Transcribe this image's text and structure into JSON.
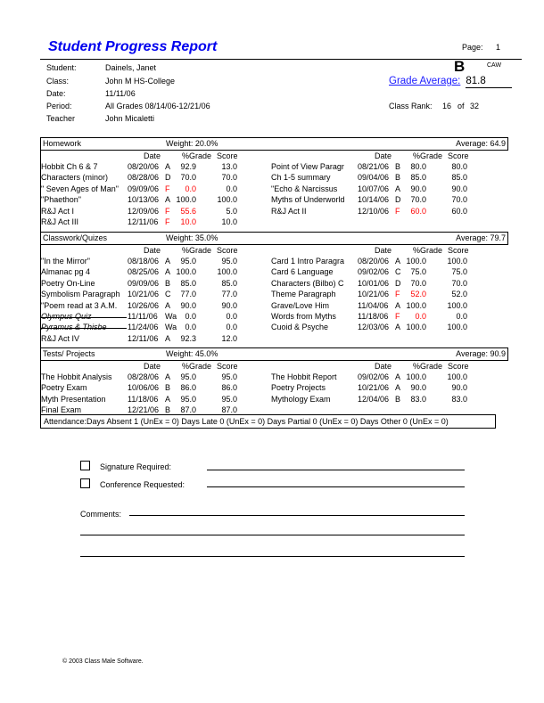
{
  "header": {
    "title": "Student Progress Report",
    "page_label": "Page:",
    "page_number": "1",
    "fields": [
      {
        "label": "Student:",
        "value": "Dainels, Janet"
      },
      {
        "label": "Class:",
        "value": "John M HS-College"
      },
      {
        "label": "Date:",
        "value": "11/11/06"
      },
      {
        "label": "Period:",
        "value": "All Grades 08/14/06-12/21/06"
      },
      {
        "label": "Teacher",
        "value": "John Micaletti"
      }
    ],
    "letter_grade": "B",
    "caw": "CAW",
    "grade_average_label": "Grade Average:",
    "grade_average": "81.8",
    "class_rank_label": "Class Rank:",
    "class_rank": "16",
    "of_label": "of",
    "class_size": "32"
  },
  "columns": {
    "date": "Date",
    "pct": "%Grade",
    "score": "Score"
  },
  "colors": {
    "title": "#0000ee",
    "fail": "#ff0000",
    "link": "#1a1aff"
  },
  "sections": [
    {
      "name": "Homework",
      "weight": "Weight:  20.0%",
      "average": "Average:  64.9",
      "left": [
        {
          "name": "Hobbit Ch 6 & 7",
          "date": "08/20/06",
          "grade": "A",
          "pct": "92.9",
          "score": "13.0"
        },
        {
          "name": "Characters (minor)",
          "date": "08/28/06",
          "grade": "D",
          "pct": "70.0",
          "score": "70.0"
        },
        {
          "name": "\" Seven Ages of Man\"",
          "date": "09/09/06",
          "grade": "F",
          "pct": "0.0",
          "score": "0.0",
          "fail": true
        },
        {
          "name": "\"Phaethon\"",
          "date": "10/13/06",
          "grade": "A",
          "pct": "100.0",
          "score": "100.0"
        },
        {
          "name": "R&J Act I",
          "date": "12/09/06",
          "grade": "F",
          "pct": "55.6",
          "score": "5.0",
          "fail": true
        },
        {
          "name": "R&J Act III",
          "date": "12/11/06",
          "grade": "F",
          "pct": "10.0",
          "score": "10.0",
          "fail": true
        }
      ],
      "right": [
        {
          "name": "Point of View Paragr",
          "date": "08/21/06",
          "grade": "B",
          "pct": "80.0",
          "score": "80.0"
        },
        {
          "name": "Ch 1-5 summary",
          "date": "09/04/06",
          "grade": "B",
          "pct": "85.0",
          "score": "85.0"
        },
        {
          "name": "\"Echo & Narcissus",
          "date": "10/07/06",
          "grade": "A",
          "pct": "90.0",
          "score": "90.0"
        },
        {
          "name": "Myths of Underworld",
          "date": "10/14/06",
          "grade": "D",
          "pct": "70.0",
          "score": "70.0"
        },
        {
          "name": "R&J Act II",
          "date": "12/10/06",
          "grade": "F",
          "pct": "60.0",
          "score": "60.0",
          "fail": true
        }
      ]
    },
    {
      "name": "Classwork/Quizes",
      "weight": "Weight:  35.0%",
      "average": "Average:  79.7",
      "left": [
        {
          "name": "\"In the Mirror\"",
          "date": "08/18/06",
          "grade": "A",
          "pct": "95.0",
          "score": "95.0"
        },
        {
          "name": "Almanac pg 4",
          "date": "08/25/06",
          "grade": "A",
          "pct": "100.0",
          "score": "100.0"
        },
        {
          "name": "Poetry On-Line",
          "date": "09/09/06",
          "grade": "B",
          "pct": "85.0",
          "score": "85.0"
        },
        {
          "name": "Symbolism Paragraph",
          "date": "10/21/06",
          "grade": "C",
          "pct": "77.0",
          "score": "77.0"
        },
        {
          "name": "\"Poem read at 3 A.M.",
          "date": "10/26/06",
          "grade": "A",
          "pct": "90.0",
          "score": "90.0"
        },
        {
          "name": "Olympus Quiz",
          "date": "11/11/06",
          "grade": "Wa",
          "pct": "0.0",
          "score": "0.0",
          "struck": true
        },
        {
          "name": "Pyramus & Thisbe",
          "date": "11/24/06",
          "grade": "Wa",
          "pct": "0.0",
          "score": "0.0",
          "struck": true
        },
        {
          "name": "R&J Act IV",
          "date": "12/11/06",
          "grade": "A",
          "pct": "92.3",
          "score": "12.0"
        }
      ],
      "right": [
        {
          "name": "Card 1 Intro Paragra",
          "date": "08/20/06",
          "grade": "A",
          "pct": "100.0",
          "score": "100.0"
        },
        {
          "name": "Card 6 Language",
          "date": "09/02/06",
          "grade": "C",
          "pct": "75.0",
          "score": "75.0"
        },
        {
          "name": "Characters (Bilbo) C",
          "date": "10/01/06",
          "grade": "D",
          "pct": "70.0",
          "score": "70.0"
        },
        {
          "name": "Theme Paragraph",
          "date": "10/21/06",
          "grade": "F",
          "pct": "52.0",
          "score": "52.0",
          "fail": true
        },
        {
          "name": "Grave/Love Him",
          "date": "11/04/06",
          "grade": "A",
          "pct": "100.0",
          "score": "100.0"
        },
        {
          "name": "Words from Myths",
          "date": "11/18/06",
          "grade": "F",
          "pct": "0.0",
          "score": "0.0",
          "fail": true
        },
        {
          "name": "Cuoid & Psyche",
          "date": "12/03/06",
          "grade": "A",
          "pct": "100.0",
          "score": "100.0"
        }
      ]
    },
    {
      "name": "Tests/ Projects",
      "weight": "Weight:  45.0%",
      "average": "Average:  90.9",
      "left": [
        {
          "name": "The Hobbit Analysis",
          "date": "08/28/06",
          "grade": "A",
          "pct": "95.0",
          "score": "95.0"
        },
        {
          "name": "Poetry Exam",
          "date": "10/06/06",
          "grade": "B",
          "pct": "86.0",
          "score": "86.0"
        },
        {
          "name": "Myth Presentation",
          "date": "11/18/06",
          "grade": "A",
          "pct": "95.0",
          "score": "95.0"
        },
        {
          "name": "Final Exam",
          "date": "12/21/06",
          "grade": "B",
          "pct": "87.0",
          "score": "87.0"
        }
      ],
      "right": [
        {
          "name": "The Hobbit Report",
          "date": "09/02/06",
          "grade": "A",
          "pct": "100.0",
          "score": "100.0"
        },
        {
          "name": "Poetry Projects",
          "date": "10/21/06",
          "grade": "A",
          "pct": "90.0",
          "score": "90.0"
        },
        {
          "name": "Mythology Exam",
          "date": "12/04/06",
          "grade": "B",
          "pct": "83.0",
          "score": "83.0"
        }
      ]
    }
  ],
  "attendance": "Attendance:Days Absent 1 (UnEx = 0) Days Late 0 (UnEx = 0) Days Partial 0 (UnEx = 0) Days Other 0 (UnEx = 0)",
  "footer_form": {
    "signature_label": "Signature Required:",
    "conference_label": "Conference Requested:",
    "comments_label": "Comments:"
  },
  "copyright": "© 2003 Class Male Software."
}
